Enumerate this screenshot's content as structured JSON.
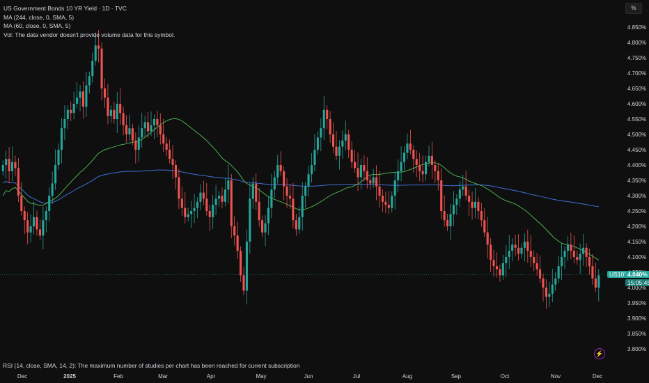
{
  "legend": {
    "title": "US Government Bonds 10 YR Yield · 1D · TVC",
    "ma1": "MA (244, close, 0, SMA, 5)",
    "ma2": "MA (60, close, 0, SMA, 5)",
    "vol": "Vol: The data vendor doesn't provide volume data for this symbol."
  },
  "rsi_text": "RSI (14, close, SMA, 14, 2): The maximum number of studies per chart has been reached for current subscription",
  "unit_button": "%",
  "symbol_tag": "US10Y",
  "price_tag": "4.040%",
  "countdown_tag": "15:05:45",
  "colors": {
    "up": "#26a69a",
    "down": "#ef5350",
    "ma244": "#3f6fd8",
    "ma60": "#4caf50",
    "background": "#0f0f0f",
    "text": "#d1d4dc"
  },
  "chart_data": {
    "type": "candlestick",
    "symbol": "US10Y",
    "interval": "1D",
    "y_axis": {
      "unit": "%",
      "range": [
        3.775,
        4.875
      ],
      "ticks": [
        "4.850%",
        "4.800%",
        "4.750%",
        "4.700%",
        "4.650%",
        "4.600%",
        "4.550%",
        "4.500%",
        "4.450%",
        "4.400%",
        "4.350%",
        "4.300%",
        "4.250%",
        "4.200%",
        "4.150%",
        "4.100%",
        "4.050%",
        "4.000%",
        "3.950%",
        "3.900%",
        "3.850%",
        "3.800%"
      ]
    },
    "x_axis": {
      "ticks": [
        "Dec",
        "2025",
        "Feb",
        "Mar",
        "Apr",
        "May",
        "Jun",
        "Jul",
        "Aug",
        "Sep",
        "Oct",
        "Nov",
        "Dec"
      ]
    },
    "last_value": 4.04,
    "grid": false,
    "close_series": [
      4.4,
      4.42,
      4.38,
      4.41,
      4.39,
      4.3,
      4.25,
      4.22,
      4.18,
      4.2,
      4.23,
      4.19,
      4.17,
      4.22,
      4.25,
      4.3,
      4.34,
      4.4,
      4.45,
      4.52,
      4.55,
      4.58,
      4.57,
      4.6,
      4.62,
      4.64,
      4.59,
      4.66,
      4.69,
      4.74,
      4.79,
      4.78,
      4.65,
      4.62,
      4.56,
      4.58,
      4.55,
      4.6,
      4.57,
      4.53,
      4.5,
      4.52,
      4.48,
      4.45,
      4.49,
      4.52,
      4.54,
      4.51,
      4.53,
      4.55,
      4.53,
      4.5,
      4.47,
      4.45,
      4.42,
      4.4,
      4.36,
      4.29,
      4.26,
      4.23,
      4.24,
      4.25,
      4.26,
      4.28,
      4.31,
      4.29,
      4.25,
      4.23,
      4.27,
      4.29,
      4.3,
      4.28,
      4.32,
      4.35,
      4.2,
      4.17,
      4.12,
      4.04,
      3.99,
      4.15,
      4.29,
      4.34,
      4.28,
      4.22,
      4.18,
      4.21,
      4.26,
      4.32,
      4.36,
      4.4,
      4.38,
      4.33,
      4.3,
      4.29,
      4.22,
      4.19,
      4.23,
      4.3,
      4.33,
      4.37,
      4.4,
      4.45,
      4.49,
      4.52,
      4.58,
      4.55,
      4.5,
      4.46,
      4.43,
      4.46,
      4.48,
      4.5,
      4.45,
      4.41,
      4.39,
      4.36,
      4.4,
      4.38,
      4.35,
      4.34,
      4.36,
      4.33,
      4.3,
      4.28,
      4.27,
      4.26,
      4.3,
      4.35,
      4.38,
      4.41,
      4.44,
      4.47,
      4.45,
      4.42,
      4.4,
      4.38,
      4.37,
      4.41,
      4.43,
      4.4,
      4.38,
      4.35,
      4.25,
      4.22,
      4.2,
      4.24,
      4.27,
      4.29,
      4.32,
      4.33,
      4.3,
      4.28,
      4.26,
      4.28,
      4.25,
      4.22,
      4.18,
      4.14,
      4.09,
      4.07,
      4.06,
      4.04,
      4.08,
      4.1,
      4.12,
      4.14,
      4.13,
      4.11,
      4.13,
      4.15,
      4.12,
      4.1,
      4.08,
      4.06,
      4.03,
      4.0,
      3.97,
      3.98,
      4.01,
      4.03,
      4.07,
      4.1,
      4.12,
      4.14,
      4.12,
      4.1,
      4.09,
      4.11,
      4.13,
      4.1,
      4.07,
      4.03,
      4.0,
      4.04
    ]
  }
}
